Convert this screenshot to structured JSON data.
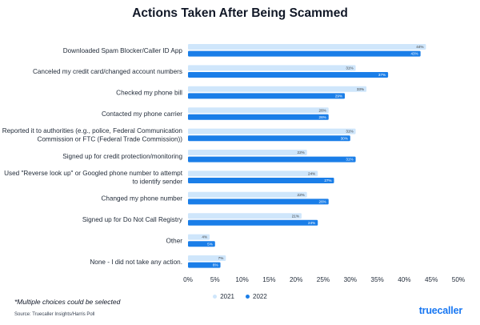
{
  "chart_data": {
    "type": "bar",
    "orientation": "horizontal",
    "title": "Actions Taken After Being Scammed",
    "categories": [
      [
        "Downloaded Spam Blocker/Caller ID App"
      ],
      [
        "Canceled my credit card/changed account numbers"
      ],
      [
        "Checked my phone bill"
      ],
      [
        "Contacted my phone carrier"
      ],
      [
        "Reported it to authorities (e.g., police, Federal Communication",
        "Commission or FTC (Federal Trade Commission))"
      ],
      [
        "Signed up for credit protection/monitoring"
      ],
      [
        "Used \"Reverse look up\" or Googled phone number to attempt",
        "to identify sender"
      ],
      [
        "Changed my phone number"
      ],
      [
        "Signed up for Do Not Call Registry"
      ],
      [
        "Other"
      ],
      [
        "None - I did not take any action."
      ]
    ],
    "series": [
      {
        "name": "2021",
        "color": "#cfe6fb",
        "values": [
          44,
          31,
          33,
          26,
          31,
          22,
          24,
          22,
          21,
          4,
          7
        ],
        "labels": [
          "44%",
          "31%",
          "33%",
          "26%",
          "31%",
          "22%",
          "24%",
          "22%",
          "21%",
          "4%",
          "7%"
        ]
      },
      {
        "name": "2022",
        "color": "#1a7ee8",
        "values": [
          43,
          37,
          29,
          26,
          30,
          31,
          27,
          26,
          24,
          5,
          6
        ],
        "labels": [
          "43%",
          "37%",
          "29%",
          "26%",
          "30%",
          "31%",
          "27%",
          "26%",
          "24%",
          "5%",
          "6%"
        ]
      }
    ],
    "xlim": [
      0,
      50
    ],
    "xticks": [
      0,
      5,
      10,
      15,
      20,
      25,
      30,
      35,
      40,
      45,
      50
    ],
    "xtick_labels": [
      "0%",
      "5%",
      "10%",
      "15%",
      "20%",
      "25%",
      "30%",
      "35%",
      "40%",
      "45%",
      "50%"
    ],
    "legend_position": "bottom",
    "grid": false
  },
  "footnote": "*Multiple choices could be selected",
  "source": "Source: Truecaller Insights/Harris Poll",
  "logo_text": "truecaller"
}
